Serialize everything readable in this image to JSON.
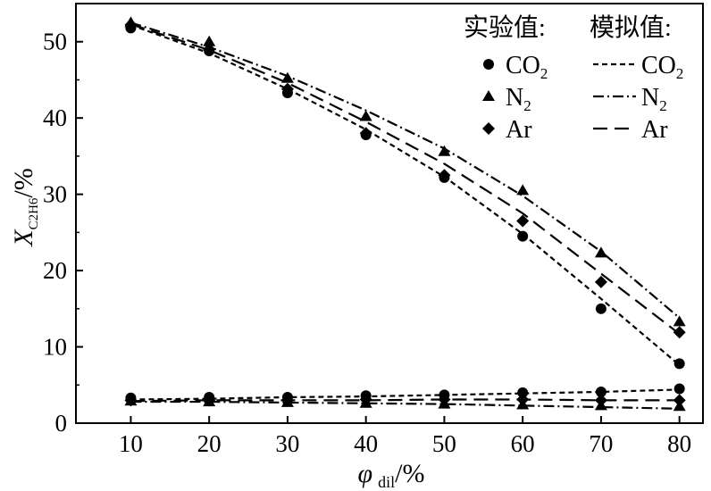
{
  "chart_data": {
    "type": "line",
    "xlabel": {
      "symbol": "φ",
      "sub": "dil",
      "unit": "/%"
    },
    "ylabel": {
      "symbol": "X",
      "sub": "C2H6",
      "unit": "/%"
    },
    "x": [
      10,
      20,
      30,
      40,
      50,
      60,
      70,
      80
    ],
    "xlim": [
      3,
      83
    ],
    "ylim": [
      0,
      55
    ],
    "xticks": [
      10,
      20,
      30,
      40,
      50,
      60,
      70,
      80
    ],
    "yticks": [
      0,
      10,
      20,
      30,
      40,
      50
    ],
    "grid": false,
    "legend": {
      "placement": "top-right",
      "exp_title": "实验值:",
      "sim_title": "模拟值:",
      "entries": [
        {
          "label": "CO",
          "sub": "2"
        },
        {
          "label": "N",
          "sub": "2"
        },
        {
          "label": "Ar",
          "sub": ""
        }
      ]
    },
    "experimental": [
      {
        "marker": "circle",
        "upper": [
          51.8,
          48.8,
          43.3,
          37.8,
          32.2,
          24.5,
          15.0,
          7.8
        ],
        "lower": [
          3.3,
          3.4,
          3.4,
          3.6,
          3.7,
          4.0,
          4.1,
          4.5
        ]
      },
      {
        "marker": "triangle",
        "upper": [
          52.5,
          50.0,
          45.2,
          40.2,
          35.6,
          30.5,
          22.3,
          13.3
        ],
        "lower": [
          2.9,
          2.8,
          2.7,
          2.6,
          2.5,
          2.4,
          2.3,
          2.2
        ]
      },
      {
        "marker": "diamond",
        "upper": [
          52.2,
          49.0,
          43.8,
          38.0,
          32.5,
          26.5,
          18.5,
          11.9
        ],
        "lower": [
          3.0,
          3.0,
          3.0,
          3.1,
          3.1,
          3.1,
          3.0,
          3.0
        ]
      }
    ],
    "simulated": [
      {
        "dash": "short-dash",
        "upper": [
          52.2,
          48.5,
          43.8,
          38.5,
          32.3,
          24.8,
          16.3,
          7.6
        ],
        "lower": [
          3.1,
          3.2,
          3.4,
          3.5,
          3.7,
          3.9,
          4.1,
          4.4
        ]
      },
      {
        "dash": "dash-dot",
        "upper": [
          52.5,
          49.3,
          45.5,
          41.0,
          36.0,
          29.8,
          22.5,
          13.8
        ],
        "lower": [
          2.8,
          2.8,
          2.7,
          2.6,
          2.5,
          2.3,
          2.1,
          1.9
        ]
      },
      {
        "dash": "long-dash",
        "upper": [
          52.3,
          48.9,
          44.6,
          39.5,
          34.0,
          27.5,
          19.6,
          11.7
        ],
        "lower": [
          2.9,
          3.0,
          3.0,
          3.0,
          3.1,
          3.1,
          3.0,
          3.0
        ]
      }
    ]
  }
}
